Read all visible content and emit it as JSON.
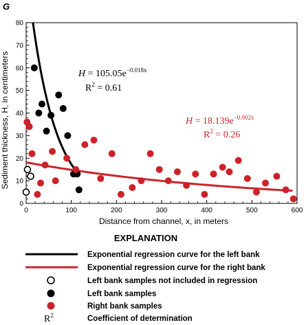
{
  "chart_data": {
    "type": "scatter",
    "panel_label": "G",
    "xlabel": "Distance from channel, x, in meters",
    "ylabel": "Sediment thickness, H, in centimeters",
    "xlim": [
      0,
      600
    ],
    "ylim": [
      0,
      80
    ],
    "xticks": [
      0,
      100,
      200,
      300,
      400,
      500,
      600
    ],
    "yticks": [
      0,
      10,
      20,
      30,
      40,
      50,
      60,
      70,
      80
    ],
    "grid": false,
    "colors": {
      "left": "#000000",
      "right": "#cc2229"
    },
    "series": [
      {
        "name": "Left bank samples not included in regression",
        "marker": "open-circle",
        "color": "#000000",
        "points": [
          [
            0,
            5
          ],
          [
            3,
            15
          ],
          [
            10,
            12
          ]
        ]
      },
      {
        "name": "Left bank samples",
        "marker": "filled-circle",
        "color": "#000000",
        "points": [
          [
            18,
            60
          ],
          [
            28,
            40
          ],
          [
            35,
            44
          ],
          [
            45,
            32
          ],
          [
            55,
            39
          ],
          [
            72,
            48
          ],
          [
            82,
            42
          ],
          [
            92,
            30
          ],
          [
            105,
            13
          ],
          [
            113,
            13
          ],
          [
            117,
            6
          ]
        ]
      },
      {
        "name": "Right bank samples",
        "marker": "filled-circle",
        "color": "#cc2229",
        "points": [
          [
            2,
            36
          ],
          [
            7,
            34
          ],
          [
            13,
            22
          ],
          [
            25,
            4
          ],
          [
            32,
            9
          ],
          [
            42,
            17
          ],
          [
            58,
            23
          ],
          [
            65,
            10
          ],
          [
            90,
            20
          ],
          [
            110,
            15
          ],
          [
            130,
            26
          ],
          [
            150,
            28
          ],
          [
            165,
            11
          ],
          [
            190,
            22
          ],
          [
            210,
            4
          ],
          [
            235,
            7
          ],
          [
            255,
            10
          ],
          [
            275,
            22
          ],
          [
            295,
            15
          ],
          [
            315,
            10
          ],
          [
            335,
            14
          ],
          [
            355,
            8
          ],
          [
            375,
            13
          ],
          [
            395,
            4
          ],
          [
            415,
            13
          ],
          [
            435,
            16
          ],
          [
            450,
            14
          ],
          [
            470,
            19
          ],
          [
            490,
            11
          ],
          [
            510,
            5
          ],
          [
            530,
            9
          ],
          [
            555,
            12
          ],
          [
            575,
            6
          ],
          [
            592,
            2
          ]
        ]
      }
    ],
    "curves": [
      {
        "name": "Exponential regression curve for the left bank",
        "color": "#000000",
        "a": 105.05,
        "b": -0.018,
        "x_range": [
          15,
          118
        ]
      },
      {
        "name": "Exponential regression curve for the right bank",
        "color": "#cc2229",
        "a": 18.139,
        "b": -0.002,
        "x_range": [
          0,
          590
        ]
      }
    ],
    "annotations": {
      "left_eq": {
        "lhs": "H",
        "rhs": " = 105.05e",
        "exp": "−0.018x",
        "r2_prefix": "R",
        "r2_sup": "2",
        "r2_value": " = 0.61"
      },
      "right_eq": {
        "lhs": "H",
        "rhs": " = 18.139e",
        "exp": "−0.002x",
        "r2_prefix": "R",
        "r2_sup": "2",
        "r2_value": " = 0.26"
      }
    },
    "legend": {
      "title": "EXPLANATION",
      "items": [
        "Exponential regression curve for the left bank",
        "Exponential regression curve for the right bank",
        "Left bank samples not included in regression",
        "Left bank samples",
        "Right bank samples",
        "Coefficient of determination"
      ],
      "r2_symbol": "R",
      "r2_sup": "2"
    }
  }
}
